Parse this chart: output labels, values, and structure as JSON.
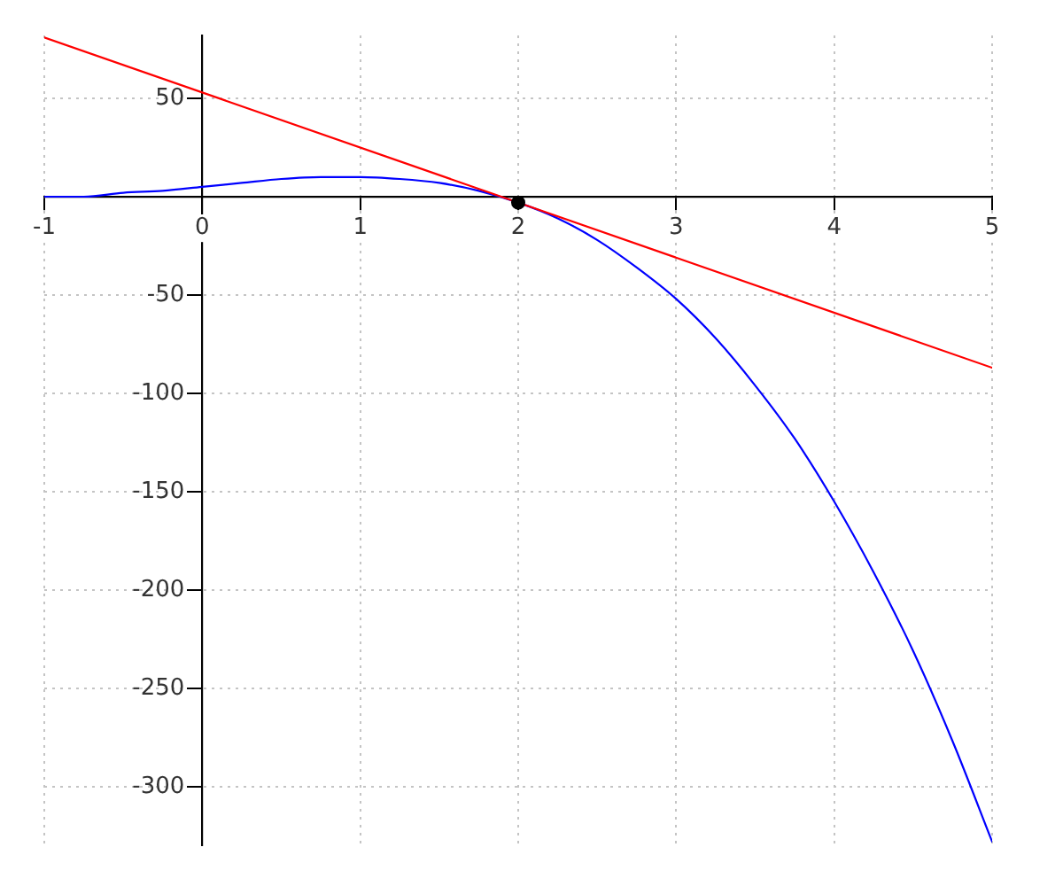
{
  "chart_data": {
    "type": "line",
    "xlim": [
      -1,
      5
    ],
    "xticks": [
      -1,
      0,
      1,
      2,
      3,
      4,
      5
    ],
    "ylim": [
      -330,
      82
    ],
    "yticks": [
      -300,
      -250,
      -200,
      -150,
      -100,
      -50,
      50
    ],
    "grid": true,
    "line_style": "solid",
    "series": [
      {
        "color": "#0000ff",
        "x": [
          -1,
          -0.75,
          -0.5,
          -0.25,
          0,
          0.25,
          0.5,
          0.75,
          1,
          1.25,
          1.5,
          1.75,
          2,
          2.25,
          2.5,
          2.75,
          3,
          3.25,
          3.5,
          3.75,
          4,
          4.25,
          4.5,
          4.75,
          5
        ],
        "values": [
          0,
          0,
          2,
          3,
          5,
          7,
          9,
          10,
          10,
          9,
          7,
          3,
          -3,
          -11,
          -22,
          -36,
          -52,
          -72,
          -96,
          -123,
          -155,
          -191,
          -231,
          -277,
          -328
        ]
      },
      {
        "color": "#ff0000",
        "x": [
          -1,
          5
        ],
        "values": [
          81,
          -87
        ]
      },
      {
        "type": "scatter",
        "color": "#000000",
        "x": [
          2
        ],
        "values": [
          -3
        ],
        "marker": "circle"
      }
    ]
  }
}
